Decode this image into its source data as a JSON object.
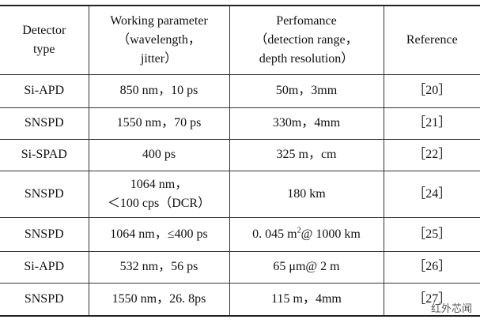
{
  "table": {
    "header": [
      [
        "Detector",
        "type"
      ],
      [
        "Working parameter",
        "（wavelength，",
        "jitter）"
      ],
      [
        "Perfomance",
        "（detection range，",
        "depth resolution）"
      ],
      [
        "Reference"
      ]
    ],
    "rows": [
      [
        "Si-APD",
        "850 nm，10 ps",
        "50m，3mm",
        "［20］"
      ],
      [
        "SNSPD",
        "1550 nm，70 ps",
        "330m，4mm",
        "［21］"
      ],
      [
        "Si-SPAD",
        "400 ps",
        "325 m，cm",
        "［22］"
      ],
      [
        "SNSPD",
        [
          "1064 nm，",
          "＜100 cps（DCR）"
        ],
        "180 km",
        "［24］"
      ],
      [
        "SNSPD",
        "1064 nm，≤400 ps",
        {
          "text": "0. 045 m",
          "sup": "2",
          "after": "@ 1000 km"
        },
        "［25］"
      ],
      [
        "Si-APD",
        "532 nm，56 ps",
        "65 μm@ 2 m",
        "［26］"
      ],
      [
        "SNSPD",
        "1550 nm，26. 8ps",
        "115 m，4mm",
        "［27］"
      ]
    ]
  },
  "watermark": "红外芯闻"
}
